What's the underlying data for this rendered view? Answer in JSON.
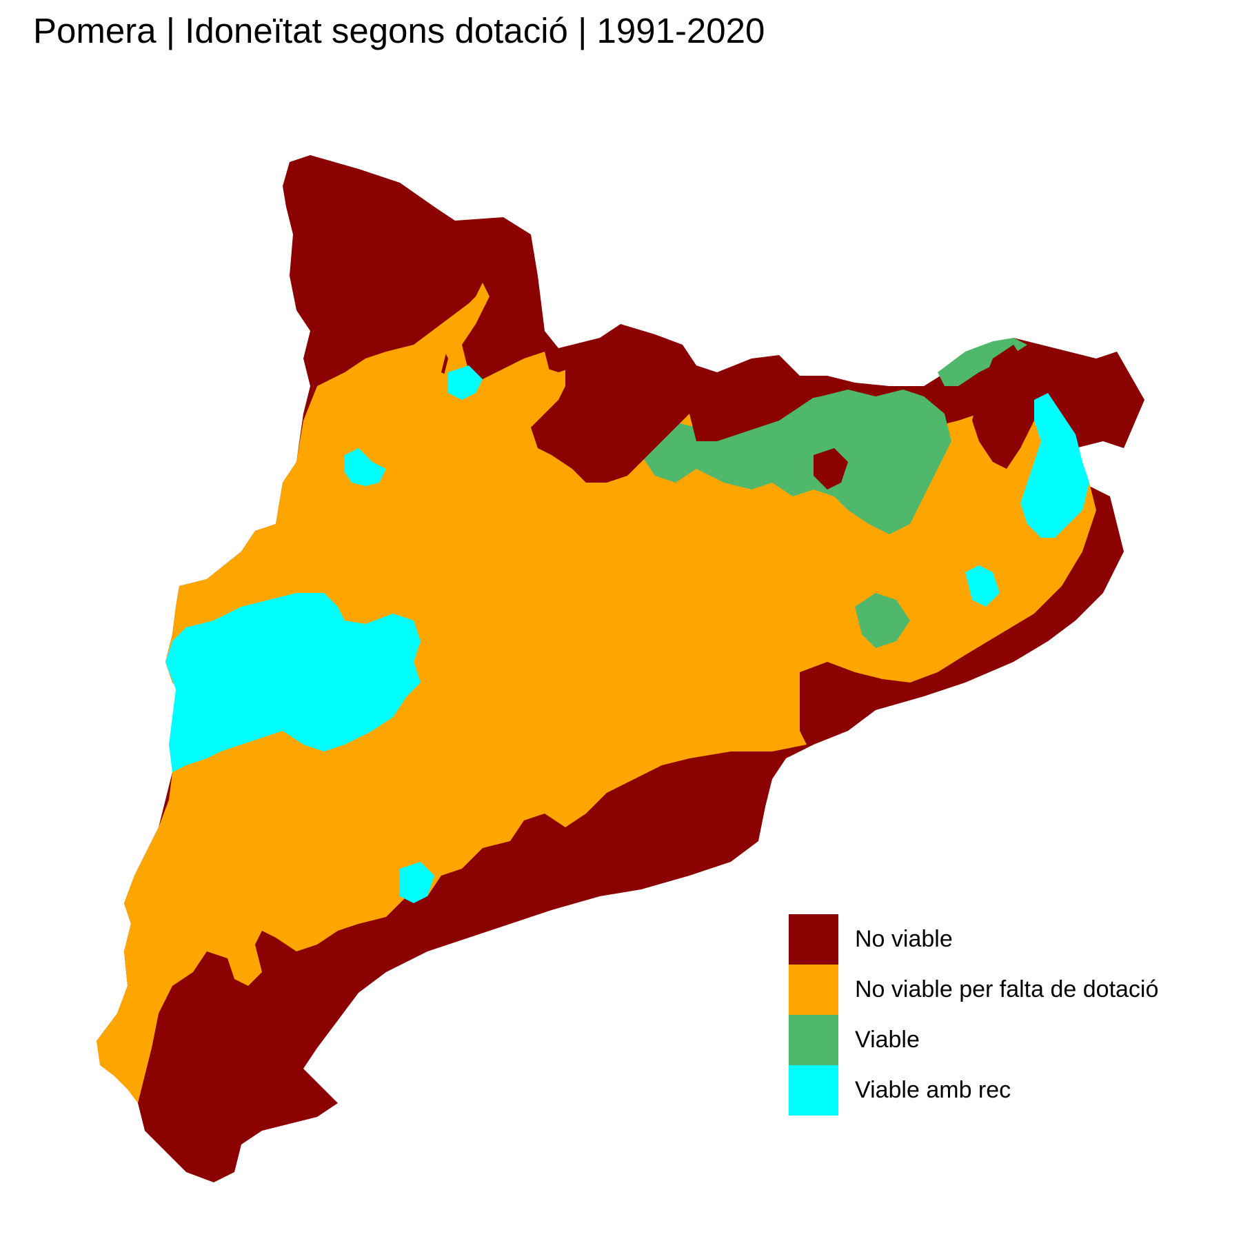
{
  "title": "Pomera | Idoneïtat segons dotació | 1991-2020",
  "legend": [
    {
      "label": "No viable",
      "color": "#8B0000"
    },
    {
      "label": "No viable per falta de dotació",
      "color": "#FFA500"
    },
    {
      "label": "Viable",
      "color": "#4FB86A"
    },
    {
      "label": "Viable amb rec",
      "color": "#00FFFF"
    }
  ]
}
